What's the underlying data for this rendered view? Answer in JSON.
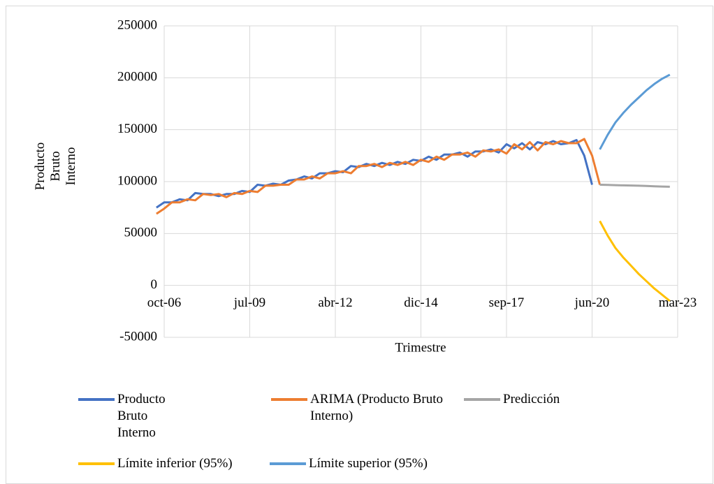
{
  "chart_data": {
    "type": "line",
    "y_label": "Producto Bruto Interno",
    "x_label": "Trimestre",
    "categories": [
      null,
      "oct-06",
      null,
      null,
      null,
      null,
      null,
      null,
      null,
      null,
      null,
      null,
      "jul-09",
      null,
      null,
      null,
      null,
      null,
      null,
      null,
      null,
      null,
      null,
      "abr-12",
      null,
      null,
      null,
      null,
      null,
      null,
      null,
      null,
      null,
      null,
      "dic-14",
      null,
      null,
      null,
      null,
      null,
      null,
      null,
      null,
      null,
      null,
      "sep-17",
      null,
      null,
      null,
      null,
      null,
      null,
      null,
      null,
      null,
      null,
      "jun-20",
      null,
      null,
      null,
      null,
      null,
      null,
      null,
      null,
      null,
      null,
      "mar-23"
    ],
    "ylim": [
      -50000,
      250000
    ],
    "yticks": [
      -50000,
      0,
      50000,
      100000,
      150000,
      200000,
      250000
    ],
    "grid": true,
    "series": [
      {
        "name": "Producto Bruto Interno",
        "color": "#4472c4",
        "values": [
          75000,
          80000,
          80000,
          83000,
          82000,
          89000,
          88000,
          88000,
          86000,
          88000,
          88000,
          91000,
          90000,
          97000,
          96000,
          98000,
          97000,
          101000,
          102000,
          105000,
          103000,
          108000,
          108000,
          110000,
          109000,
          115000,
          114000,
          117000,
          115000,
          118000,
          116000,
          119000,
          117000,
          121000,
          120000,
          124000,
          121000,
          126000,
          126000,
          128000,
          124000,
          129000,
          129000,
          131000,
          128000,
          136000,
          132000,
          137000,
          131000,
          138000,
          136000,
          139000,
          136000,
          137000,
          140000,
          125000,
          97000,
          null,
          null,
          null,
          null,
          null,
          null,
          null,
          null,
          null,
          null,
          null
        ]
      },
      {
        "name": "ARIMA (Producto Bruto Interno)",
        "color": "#ed7d31",
        "values": [
          69000,
          74000,
          80000,
          80000,
          83000,
          82000,
          88000,
          87000,
          88000,
          85000,
          89000,
          88000,
          91000,
          90000,
          96000,
          96000,
          97000,
          97000,
          102000,
          102000,
          105000,
          103000,
          108000,
          108000,
          110000,
          108000,
          115000,
          115000,
          117000,
          114000,
          118000,
          116000,
          119000,
          116000,
          121000,
          119000,
          124000,
          121000,
          126000,
          126000,
          128000,
          124000,
          130000,
          129000,
          131000,
          127000,
          136000,
          131000,
          138000,
          130000,
          138000,
          136000,
          139000,
          137000,
          137000,
          141000,
          125000,
          97000,
          null,
          null,
          null,
          null,
          null,
          null,
          null,
          null,
          null,
          null
        ]
      },
      {
        "name": "Predicción",
        "color": "#a5a5a5",
        "values": [
          null,
          null,
          null,
          null,
          null,
          null,
          null,
          null,
          null,
          null,
          null,
          null,
          null,
          null,
          null,
          null,
          null,
          null,
          null,
          null,
          null,
          null,
          null,
          null,
          null,
          null,
          null,
          null,
          null,
          null,
          null,
          null,
          null,
          null,
          null,
          null,
          null,
          null,
          null,
          null,
          null,
          null,
          null,
          null,
          null,
          null,
          null,
          null,
          null,
          null,
          null,
          null,
          null,
          null,
          null,
          null,
          null,
          97000,
          96800,
          96600,
          96400,
          96200,
          96000,
          95800,
          95500,
          95200,
          95000,
          null
        ]
      },
      {
        "name": "Límite inferior (95%)",
        "color": "#ffc000",
        "values": [
          null,
          null,
          null,
          null,
          null,
          null,
          null,
          null,
          null,
          null,
          null,
          null,
          null,
          null,
          null,
          null,
          null,
          null,
          null,
          null,
          null,
          null,
          null,
          null,
          null,
          null,
          null,
          null,
          null,
          null,
          null,
          null,
          null,
          null,
          null,
          null,
          null,
          null,
          null,
          null,
          null,
          null,
          null,
          null,
          null,
          null,
          null,
          null,
          null,
          null,
          null,
          null,
          null,
          null,
          null,
          null,
          null,
          62000,
          48000,
          36000,
          27000,
          19000,
          11000,
          4000,
          -3000,
          -9000,
          -15000,
          null
        ]
      },
      {
        "name": "Límite superior (95%)",
        "color": "#5b9bd5",
        "values": [
          null,
          null,
          null,
          null,
          null,
          null,
          null,
          null,
          null,
          null,
          null,
          null,
          null,
          null,
          null,
          null,
          null,
          null,
          null,
          null,
          null,
          null,
          null,
          null,
          null,
          null,
          null,
          null,
          null,
          null,
          null,
          null,
          null,
          null,
          null,
          null,
          null,
          null,
          null,
          null,
          null,
          null,
          null,
          null,
          null,
          null,
          null,
          null,
          null,
          null,
          null,
          null,
          null,
          null,
          null,
          null,
          null,
          131000,
          145000,
          157000,
          166000,
          174000,
          181000,
          188000,
          194000,
          199000,
          203000,
          null
        ]
      }
    ]
  }
}
